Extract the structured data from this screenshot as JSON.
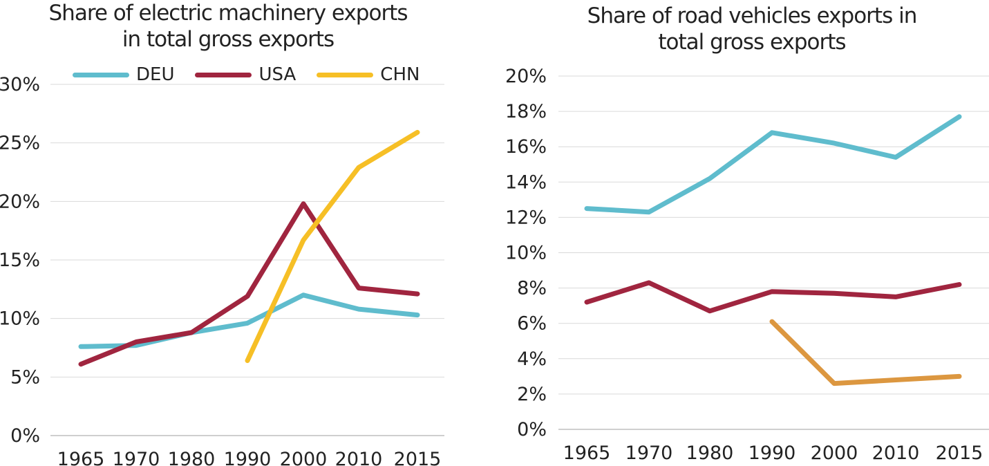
{
  "chart_data": [
    {
      "type": "line",
      "title": "Share of electric machinery exports in total gross exports",
      "title_lines": [
        "Share of electric machinery exports",
        "in total gross exports"
      ],
      "categories": [
        "1965",
        "1970",
        "1980",
        "1990",
        "2000",
        "2010",
        "2015"
      ],
      "y_ticks": [
        "0%",
        "5%",
        "10%",
        "15%",
        "20%",
        "25%",
        "30%"
      ],
      "ylim": [
        0,
        30
      ],
      "grid": true,
      "legend": "top",
      "series": [
        {
          "name": "DEU",
          "color": "#5fbccd",
          "values": [
            7.6,
            7.7,
            8.8,
            9.6,
            12.0,
            10.8,
            10.3
          ]
        },
        {
          "name": "USA",
          "color": "#a0253f",
          "values": [
            6.1,
            8.0,
            8.8,
            11.9,
            19.8,
            12.6,
            12.1
          ]
        },
        {
          "name": "CHN",
          "color": "#f6bf26",
          "values": [
            null,
            null,
            null,
            6.4,
            16.7,
            22.9,
            25.9
          ]
        }
      ]
    },
    {
      "type": "line",
      "title": "Share of road vehicles exports in total gross exports",
      "title_lines": [
        "Share of road vehicles exports in",
        "total gross exports"
      ],
      "categories": [
        "1965",
        "1970",
        "1980",
        "1990",
        "2000",
        "2010",
        "2015"
      ],
      "y_ticks": [
        "0%",
        "2%",
        "4%",
        "6%",
        "8%",
        "10%",
        "12%",
        "14%",
        "16%",
        "18%",
        "20%"
      ],
      "ylim": [
        0,
        20
      ],
      "grid": true,
      "series": [
        {
          "color": "#5fbccd",
          "values": [
            12.5,
            12.3,
            14.2,
            16.8,
            16.2,
            15.4,
            17.7
          ]
        },
        {
          "color": "#a0253f",
          "values": [
            7.2,
            8.3,
            6.7,
            7.8,
            7.7,
            7.5,
            8.2
          ]
        },
        {
          "color": "#dc9740",
          "values": [
            null,
            null,
            null,
            6.1,
            2.6,
            2.8,
            3.0
          ]
        }
      ]
    }
  ]
}
